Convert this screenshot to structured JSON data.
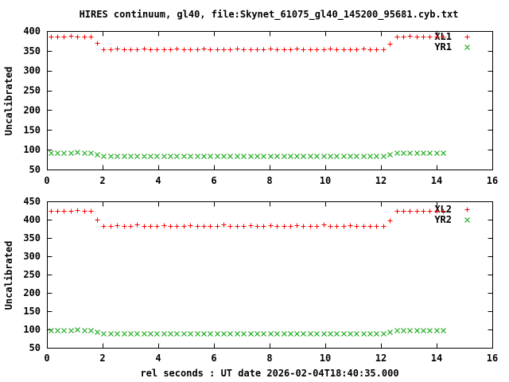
{
  "title": "HIRES continuum, gl40, file:Skynet_61075_gl40_145200_95681.cyb.txt",
  "xlabel": "rel seconds : UT date 2026-02-04T18:40:35.000",
  "colors": {
    "red": "#ff0000",
    "green": "#00a000",
    "text": "#000000",
    "border": "#000000"
  },
  "chart_data": [
    {
      "type": "scatter",
      "panel": "top",
      "ylabel": "Uncalibrated",
      "xlim": [
        0,
        16
      ],
      "ylim": [
        50,
        400
      ],
      "xticks": [
        0,
        2,
        4,
        6,
        8,
        10,
        12,
        14,
        16
      ],
      "yticks": [
        50,
        100,
        150,
        200,
        250,
        300,
        350,
        400
      ],
      "legend_position": "top-right-inside",
      "x": [
        0.13,
        0.37,
        0.61,
        0.85,
        1.09,
        1.33,
        1.56,
        1.8,
        2.04,
        2.28,
        2.52,
        2.76,
        3.0,
        3.24,
        3.48,
        3.72,
        3.95,
        4.19,
        4.43,
        4.67,
        4.91,
        5.15,
        5.39,
        5.63,
        5.87,
        6.11,
        6.34,
        6.58,
        6.82,
        7.06,
        7.3,
        7.54,
        7.78,
        8.02,
        8.26,
        8.5,
        8.73,
        8.97,
        9.21,
        9.45,
        9.69,
        9.93,
        10.17,
        10.41,
        10.65,
        10.89,
        11.12,
        11.36,
        11.6,
        11.84,
        12.08,
        12.32,
        12.56,
        12.8,
        13.04,
        13.28,
        13.51,
        13.75,
        13.99,
        14.23
      ],
      "series": [
        {
          "name": "XL1",
          "marker": "plus",
          "color": "#ff0000",
          "values": [
            385,
            385,
            385,
            387,
            385,
            385,
            385,
            370,
            353,
            353,
            355,
            353,
            353,
            353,
            355,
            353,
            353,
            353,
            353,
            355,
            353,
            353,
            353,
            355,
            353,
            353,
            353,
            353,
            355,
            353,
            353,
            353,
            353,
            355,
            353,
            353,
            353,
            355,
            353,
            353,
            353,
            353,
            355,
            353,
            353,
            353,
            353,
            355,
            353,
            353,
            353,
            368,
            385,
            385,
            387,
            385,
            385,
            385,
            385,
            385
          ]
        },
        {
          "name": "YR1",
          "marker": "cross",
          "color": "#00a000",
          "values": [
            93,
            93,
            93,
            93,
            94,
            93,
            93,
            88,
            85,
            85,
            85,
            84,
            85,
            85,
            85,
            84,
            85,
            85,
            85,
            85,
            84,
            85,
            85,
            85,
            85,
            84,
            85,
            85,
            85,
            85,
            84,
            85,
            85,
            85,
            85,
            85,
            84,
            85,
            85,
            85,
            84,
            85,
            85,
            85,
            85,
            84,
            85,
            85,
            85,
            85,
            85,
            88,
            92,
            92,
            93,
            92,
            92,
            92,
            93,
            92
          ]
        }
      ]
    },
    {
      "type": "scatter",
      "panel": "bottom",
      "ylabel": "Uncalibrated",
      "xlim": [
        0,
        16
      ],
      "ylim": [
        50,
        450
      ],
      "xticks": [
        0,
        2,
        4,
        6,
        8,
        10,
        12,
        14,
        16
      ],
      "yticks": [
        50,
        100,
        150,
        200,
        250,
        300,
        350,
        400,
        450
      ],
      "legend_position": "top-right-inside",
      "x": [
        0.13,
        0.37,
        0.61,
        0.85,
        1.09,
        1.33,
        1.56,
        1.8,
        2.04,
        2.28,
        2.52,
        2.76,
        3.0,
        3.24,
        3.48,
        3.72,
        3.95,
        4.19,
        4.43,
        4.67,
        4.91,
        5.15,
        5.39,
        5.63,
        5.87,
        6.11,
        6.34,
        6.58,
        6.82,
        7.06,
        7.3,
        7.54,
        7.78,
        8.02,
        8.26,
        8.5,
        8.73,
        8.97,
        9.21,
        9.45,
        9.69,
        9.93,
        10.17,
        10.41,
        10.65,
        10.89,
        11.12,
        11.36,
        11.6,
        11.84,
        12.08,
        12.32,
        12.56,
        12.8,
        13.04,
        13.28,
        13.51,
        13.75,
        13.99,
        14.23
      ],
      "series": [
        {
          "name": "XL2",
          "marker": "plus",
          "color": "#ff0000",
          "values": [
            425,
            425,
            425,
            425,
            426,
            425,
            425,
            401,
            383,
            383,
            385,
            383,
            383,
            386,
            383,
            383,
            383,
            385,
            383,
            383,
            383,
            385,
            383,
            383,
            383,
            383,
            386,
            383,
            383,
            383,
            385,
            383,
            383,
            385,
            383,
            383,
            383,
            385,
            383,
            383,
            383,
            386,
            383,
            383,
            383,
            385,
            383,
            383,
            383,
            383,
            383,
            398,
            424,
            424,
            424,
            424,
            424,
            424,
            424,
            424
          ]
        },
        {
          "name": "YR2",
          "marker": "cross",
          "color": "#00a000",
          "values": [
            98,
            98,
            98,
            98,
            99,
            98,
            98,
            93,
            90,
            90,
            90,
            89,
            90,
            90,
            90,
            89,
            90,
            90,
            90,
            90,
            89,
            90,
            90,
            90,
            90,
            89,
            90,
            90,
            90,
            90,
            89,
            90,
            90,
            90,
            90,
            90,
            89,
            90,
            90,
            90,
            89,
            90,
            90,
            90,
            90,
            89,
            90,
            90,
            90,
            90,
            90,
            93,
            97,
            97,
            98,
            97,
            97,
            97,
            98,
            97
          ]
        }
      ]
    }
  ]
}
